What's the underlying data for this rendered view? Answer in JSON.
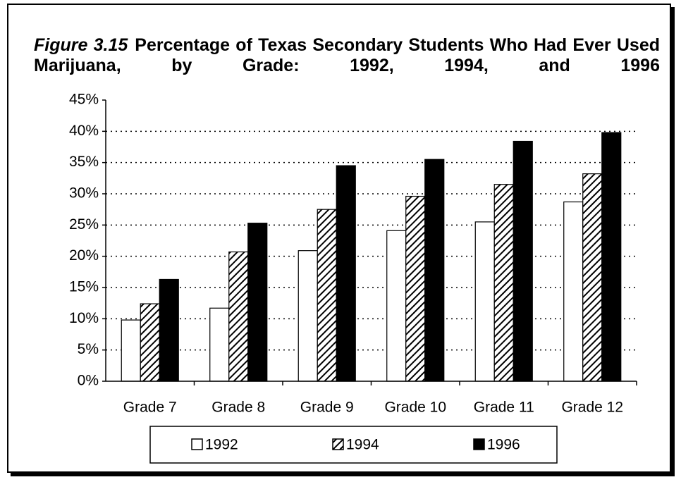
{
  "chart_data": {
    "type": "bar",
    "figure_label": "Figure 3.15",
    "title": "Percentage of Texas Secondary Students Who Had Ever Used Marijuana, by Grade: 1992, 1994, and 1996",
    "categories": [
      "Grade 7",
      "Grade 8",
      "Grade 9",
      "Grade 10",
      "Grade 11",
      "Grade 12"
    ],
    "series": [
      {
        "name": "1992",
        "color": "#ffffff",
        "values": [
          9.8,
          11.7,
          20.9,
          24.1,
          25.5,
          28.7
        ]
      },
      {
        "name": "1994",
        "color": "#000000",
        "pattern": "diagonal-hatch",
        "values": [
          12.4,
          20.7,
          27.5,
          29.6,
          31.5,
          33.2
        ]
      },
      {
        "name": "1996",
        "color": "#000000",
        "values": [
          16.3,
          25.3,
          34.5,
          35.5,
          38.4,
          39.8
        ]
      }
    ],
    "ylim": [
      0,
      45
    ],
    "yticks": [
      {
        "value": 0,
        "label": "0%"
      },
      {
        "value": 5,
        "label": "5%"
      },
      {
        "value": 10,
        "label": "10%"
      },
      {
        "value": 15,
        "label": "15%"
      },
      {
        "value": 20,
        "label": "20%"
      },
      {
        "value": 25,
        "label": "25%"
      },
      {
        "value": 30,
        "label": "30%"
      },
      {
        "value": 35,
        "label": "35%"
      },
      {
        "value": 40,
        "label": "40%"
      },
      {
        "value": 45,
        "label": "45%"
      }
    ],
    "grid": true,
    "legend": "bottom"
  }
}
